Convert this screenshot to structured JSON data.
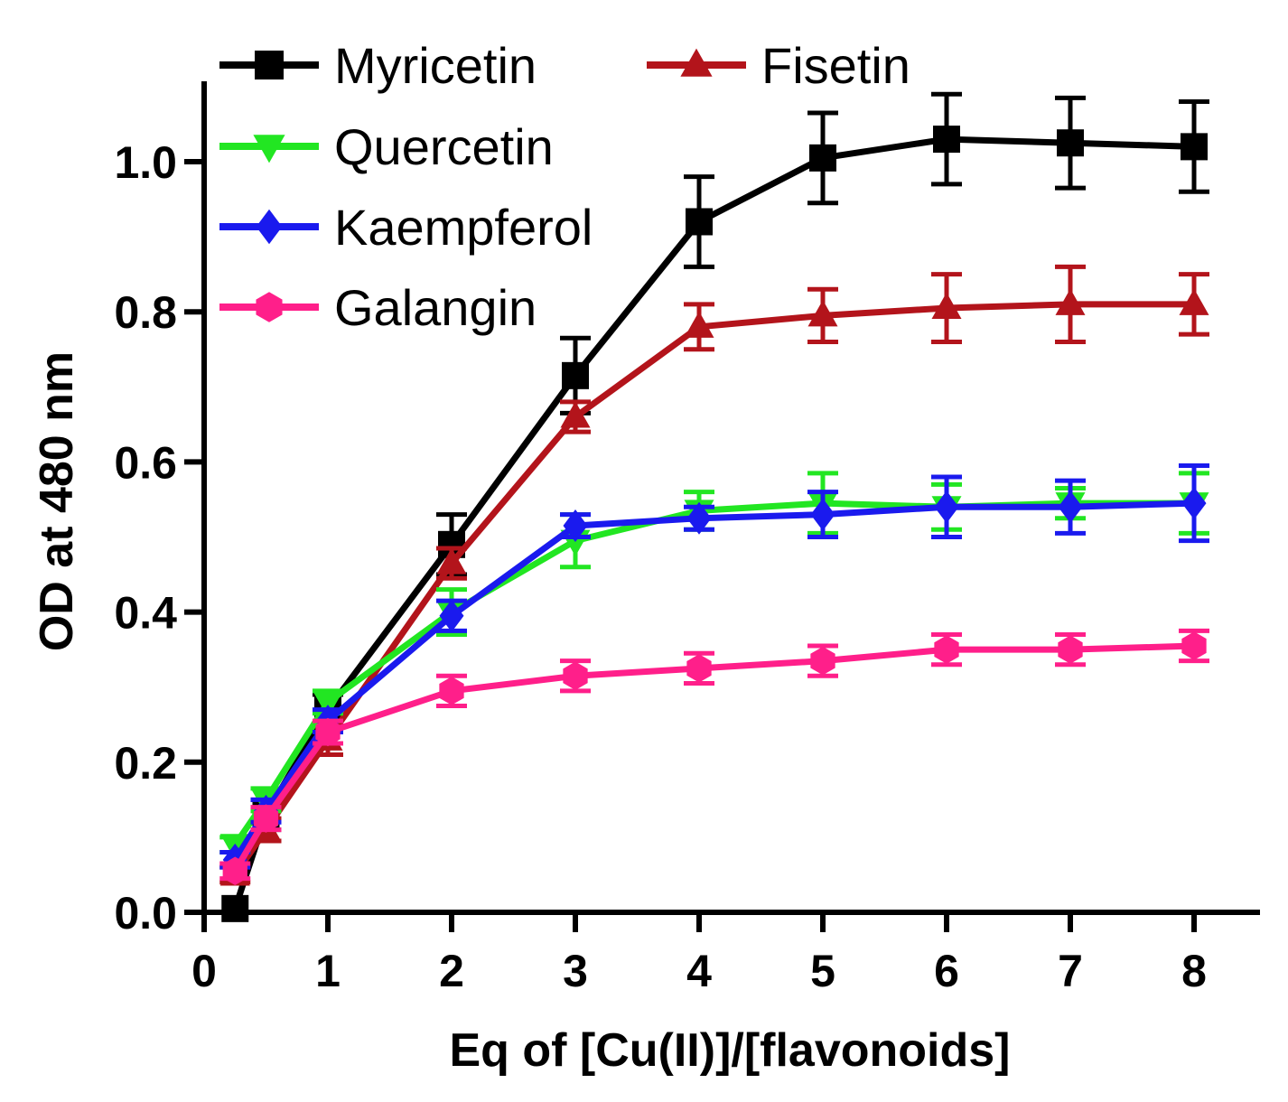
{
  "chart_data": {
    "type": "line",
    "title": "",
    "xlabel": "Eq of [Cu(II)]/[flavonoids]",
    "ylabel": "OD at 480 nm",
    "xlim": [
      0,
      8.5
    ],
    "ylim": [
      0,
      1.1
    ],
    "xticks": [
      0,
      1,
      2,
      3,
      4,
      5,
      6,
      7,
      8
    ],
    "xtick_labels": [
      "0",
      "1",
      "2",
      "3",
      "4",
      "5",
      "6",
      "7",
      "8"
    ],
    "yticks": [
      0.0,
      0.2,
      0.4,
      0.6,
      0.8,
      1.0
    ],
    "ytick_labels": [
      "0.0",
      "0.2",
      "0.4",
      "0.6",
      "0.8",
      "1.0"
    ],
    "grid": false,
    "legend_position": "top-left",
    "x": [
      0.25,
      0.5,
      1,
      2,
      3,
      4,
      5,
      6,
      7,
      8
    ],
    "series": [
      {
        "name": "Myricetin",
        "color": "#000000",
        "marker": "square",
        "values": [
          0.005,
          0.13,
          0.27,
          0.49,
          0.715,
          0.92,
          1.005,
          1.03,
          1.025,
          1.02
        ],
        "errors": [
          0.005,
          0.02,
          0.02,
          0.04,
          0.05,
          0.06,
          0.06,
          0.06,
          0.06,
          0.06
        ]
      },
      {
        "name": "Fisetin",
        "color": "#b3141b",
        "marker": "triangle-up",
        "values": [
          0.05,
          0.11,
          0.23,
          0.465,
          0.66,
          0.78,
          0.795,
          0.805,
          0.81,
          0.81
        ],
        "errors": [
          0.01,
          0.015,
          0.02,
          0.02,
          0.02,
          0.03,
          0.035,
          0.045,
          0.05,
          0.04
        ]
      },
      {
        "name": "Quercetin",
        "color": "#22e622",
        "marker": "triangle-down",
        "values": [
          0.09,
          0.15,
          0.28,
          0.4,
          0.495,
          0.535,
          0.545,
          0.54,
          0.545,
          0.545
        ],
        "errors": [
          0.01,
          0.015,
          0.015,
          0.03,
          0.035,
          0.025,
          0.04,
          0.03,
          0.02,
          0.04
        ]
      },
      {
        "name": "Kaempferol",
        "color": "#1a1aee",
        "marker": "diamond",
        "values": [
          0.07,
          0.135,
          0.255,
          0.395,
          0.515,
          0.525,
          0.53,
          0.54,
          0.54,
          0.545
        ],
        "errors": [
          0.01,
          0.015,
          0.015,
          0.02,
          0.015,
          0.015,
          0.03,
          0.04,
          0.035,
          0.05
        ]
      },
      {
        "name": "Galangin",
        "color": "#ff1f8a",
        "marker": "hexagon",
        "values": [
          0.055,
          0.125,
          0.24,
          0.295,
          0.315,
          0.325,
          0.335,
          0.35,
          0.35,
          0.355
        ],
        "errors": [
          0.01,
          0.015,
          0.015,
          0.02,
          0.02,
          0.02,
          0.02,
          0.02,
          0.02,
          0.02
        ]
      }
    ]
  }
}
